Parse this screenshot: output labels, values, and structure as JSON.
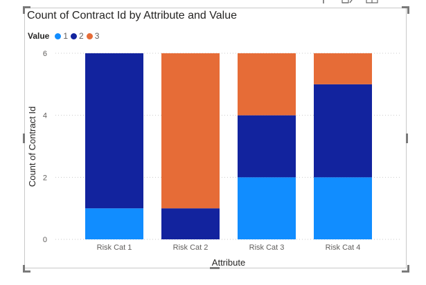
{
  "colors": {
    "series_1": "#118DFF",
    "series_2": "#12239E",
    "series_3": "#E66C37",
    "gridline": "#c8c8c8",
    "axis_text": "#605e5c",
    "title_text": "#252423"
  },
  "toolbar": {
    "icons": [
      "pin-icon",
      "edit-icon",
      "layout-icon"
    ]
  },
  "chart_data": {
    "type": "bar",
    "stacked": true,
    "title": "Count of Contract Id by Attribute and Value",
    "xlabel": "Attribute",
    "ylabel": "Count of Contract Id",
    "legend_title": "Value",
    "legend_position": "top-left",
    "categories": [
      "Risk Cat 1",
      "Risk Cat 2",
      "Risk Cat 3",
      "Risk Cat 4"
    ],
    "series": [
      {
        "name": "1",
        "values": [
          1,
          0,
          2,
          2
        ]
      },
      {
        "name": "2",
        "values": [
          5,
          1,
          2,
          3
        ]
      },
      {
        "name": "3",
        "values": [
          0,
          5,
          2,
          1
        ]
      }
    ],
    "ylim": [
      0,
      6
    ],
    "yticks": [
      "0",
      "2",
      "4",
      "6"
    ],
    "grid": true
  }
}
